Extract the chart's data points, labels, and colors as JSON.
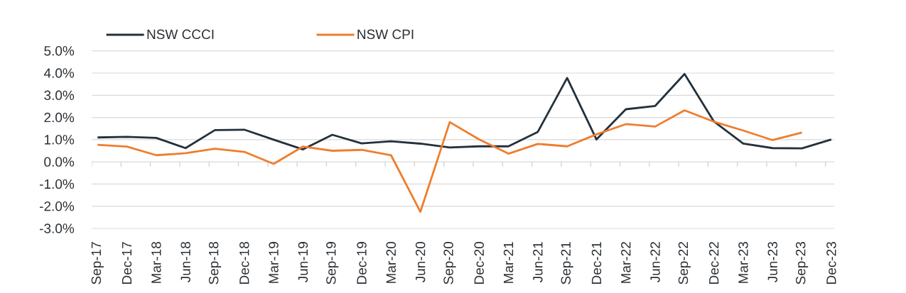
{
  "chart_data": {
    "type": "line",
    "categories": [
      "Sep-17",
      "Dec-17",
      "Mar-18",
      "Jun-18",
      "Sep-18",
      "Dec-18",
      "Mar-19",
      "Jun-19",
      "Sep-19",
      "Dec-19",
      "Mar-20",
      "Jun-20",
      "Sep-20",
      "Dec-20",
      "Mar-21",
      "Jun-21",
      "Sep-21",
      "Dec-21",
      "Mar-22",
      "Jun-22",
      "Sep-22",
      "Dec-22",
      "Mar-23",
      "Jun-23",
      "Sep-23",
      "Dec-23"
    ],
    "series": [
      {
        "name": "NSW CCCI",
        "color": "#23313b",
        "values": [
          1.1,
          1.13,
          1.08,
          0.62,
          1.43,
          1.45,
          1.0,
          0.56,
          1.22,
          0.83,
          0.93,
          0.82,
          0.65,
          0.7,
          0.7,
          1.35,
          3.78,
          1.01,
          2.37,
          2.52,
          3.96,
          1.82,
          0.82,
          0.62,
          0.61,
          1.01
        ]
      },
      {
        "name": "NSW CPI",
        "color": "#ef7d2d",
        "values": [
          0.77,
          0.69,
          0.3,
          0.39,
          0.59,
          0.45,
          -0.09,
          0.69,
          0.5,
          0.54,
          0.3,
          -2.25,
          1.79,
          1.01,
          0.37,
          0.81,
          0.7,
          1.24,
          1.7,
          1.59,
          2.32,
          1.81,
          1.41,
          0.98,
          1.32,
          null
        ]
      }
    ],
    "ylim": [
      -3,
      5
    ],
    "yticks": [
      {
        "value": -3,
        "label": "-3.0%"
      },
      {
        "value": -2,
        "label": "-2.0%"
      },
      {
        "value": -1,
        "label": "-1.0%"
      },
      {
        "value": 0,
        "label": "0.0%"
      },
      {
        "value": 1,
        "label": "1.0%"
      },
      {
        "value": 2,
        "label": "2.0%"
      },
      {
        "value": 3,
        "label": "3.0%"
      },
      {
        "value": 4,
        "label": "4.0%"
      },
      {
        "value": 5,
        "label": "5.0%"
      }
    ],
    "grid": "y",
    "legend": "top left"
  }
}
